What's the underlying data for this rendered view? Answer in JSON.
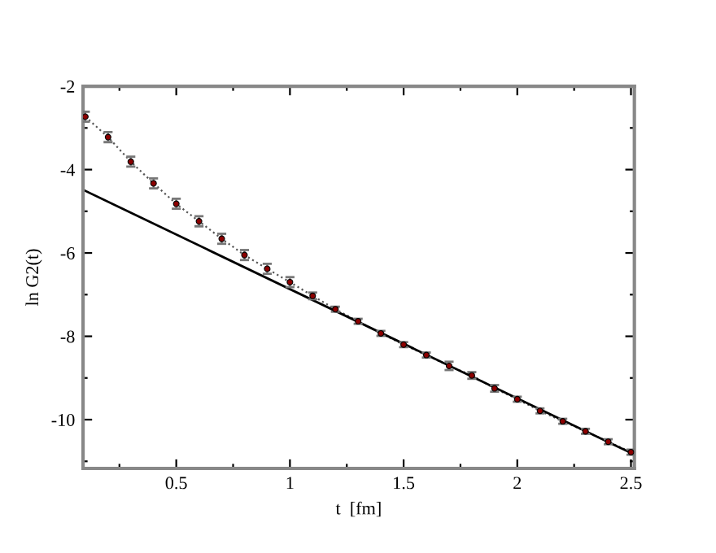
{
  "chart_data": {
    "type": "line",
    "xlabel": "t  [fm]",
    "ylabel": "ln G2(t)",
    "xlim": [
      0.09,
      2.515
    ],
    "ylim": [
      -11.17,
      -2
    ],
    "xticks": [
      {
        "value": 0.25,
        "label": null
      },
      0.5,
      {
        "value": 0.75,
        "label": null
      },
      1,
      {
        "value": 1.25,
        "label": null
      },
      1.5,
      {
        "value": 1.75,
        "label": null
      },
      2,
      {
        "value": 2.25,
        "label": null
      },
      2.5
    ],
    "yticks": [
      -2,
      {
        "value": -3,
        "label": null
      },
      -4,
      {
        "value": -5,
        "label": null
      },
      -6,
      {
        "value": -7,
        "label": null
      },
      -8,
      {
        "value": -9,
        "label": null
      },
      -10,
      {
        "value": -11,
        "label": null
      }
    ],
    "grid": false,
    "legend": false,
    "series": [
      {
        "color": "#8b0000",
        "marker": "circle",
        "line_style": "dotted",
        "x": [
          0.1,
          0.2,
          0.3,
          0.4,
          0.5,
          0.6,
          0.7,
          0.8,
          0.9,
          1.0,
          1.1,
          1.2,
          1.3,
          1.4,
          1.5,
          1.6,
          1.7,
          1.8,
          1.9,
          2.0,
          2.1,
          2.2,
          2.3,
          2.4,
          2.5
        ],
        "values": [
          -2.73,
          -3.22,
          -3.81,
          -4.33,
          -4.82,
          -5.24,
          -5.66,
          -6.05,
          -6.38,
          -6.7,
          -7.03,
          -7.35,
          -7.64,
          -7.93,
          -8.2,
          -8.45,
          -8.71,
          -8.94,
          -9.25,
          -9.51,
          -9.79,
          -10.04,
          -10.28,
          -10.53,
          -10.78
        ],
        "errors": [
          0.12,
          0.12,
          0.12,
          0.12,
          0.12,
          0.12,
          0.12,
          0.12,
          0.12,
          0.12,
          0.08,
          0.06,
          0.06,
          0.06,
          0.06,
          0.06,
          0.1,
          0.08,
          0.08,
          0.06,
          0.06,
          0.06,
          0.06,
          0.06,
          0.06
        ]
      },
      {
        "color": "#000000",
        "marker": "none",
        "line_style": "solid",
        "x": [
          0.1,
          2.5
        ],
        "values": [
          -4.51,
          -10.8
        ]
      }
    ]
  }
}
